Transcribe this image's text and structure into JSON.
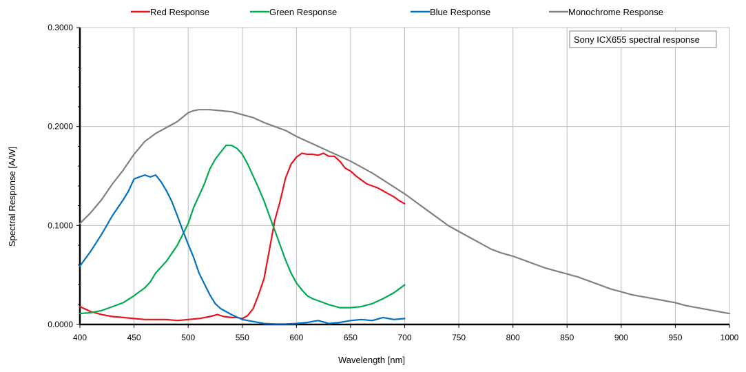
{
  "chart_data": {
    "type": "line",
    "title": "",
    "annotation": "Sony ICX655 spectral response",
    "xlabel": "Wavelength [nm]",
    "ylabel": "Spectral Response [A/W]",
    "xlim": [
      400,
      1000
    ],
    "ylim": [
      0,
      0.3
    ],
    "x_ticks": [
      400,
      450,
      500,
      550,
      600,
      650,
      700,
      750,
      800,
      850,
      900,
      950,
      1000
    ],
    "y_ticks": [
      0.0,
      0.1,
      0.2,
      0.3
    ],
    "x_tick_labels": [
      "400",
      "450",
      "500",
      "550",
      "600",
      "650",
      "700",
      "750",
      "800",
      "850",
      "900",
      "950",
      "1000"
    ],
    "y_tick_labels": [
      "0.0000",
      "0.1000",
      "0.2000",
      "0.3000"
    ],
    "grid": true,
    "legend_position": "top",
    "series": [
      {
        "name": "Red Response",
        "color": "#e8141c",
        "points": [
          [
            400,
            0.018
          ],
          [
            410,
            0.013
          ],
          [
            420,
            0.01
          ],
          [
            430,
            0.008
          ],
          [
            440,
            0.007
          ],
          [
            450,
            0.006
          ],
          [
            460,
            0.005
          ],
          [
            470,
            0.005
          ],
          [
            480,
            0.005
          ],
          [
            490,
            0.004
          ],
          [
            500,
            0.005
          ],
          [
            510,
            0.006
          ],
          [
            520,
            0.008
          ],
          [
            527,
            0.01
          ],
          [
            533,
            0.008
          ],
          [
            540,
            0.007
          ],
          [
            545,
            0.007
          ],
          [
            550,
            0.006
          ],
          [
            555,
            0.009
          ],
          [
            560,
            0.016
          ],
          [
            565,
            0.03
          ],
          [
            570,
            0.046
          ],
          [
            575,
            0.075
          ],
          [
            580,
            0.105
          ],
          [
            585,
            0.125
          ],
          [
            590,
            0.148
          ],
          [
            595,
            0.162
          ],
          [
            600,
            0.169
          ],
          [
            605,
            0.173
          ],
          [
            610,
            0.172
          ],
          [
            615,
            0.172
          ],
          [
            620,
            0.171
          ],
          [
            625,
            0.173
          ],
          [
            630,
            0.17
          ],
          [
            635,
            0.17
          ],
          [
            640,
            0.165
          ],
          [
            645,
            0.158
          ],
          [
            650,
            0.155
          ],
          [
            655,
            0.15
          ],
          [
            660,
            0.146
          ],
          [
            665,
            0.142
          ],
          [
            670,
            0.14
          ],
          [
            675,
            0.138
          ],
          [
            680,
            0.135
          ],
          [
            685,
            0.132
          ],
          [
            690,
            0.129
          ],
          [
            695,
            0.125
          ],
          [
            700,
            0.122
          ]
        ]
      },
      {
        "name": "Green Response",
        "color": "#00aa4f",
        "points": [
          [
            400,
            0.011
          ],
          [
            410,
            0.012
          ],
          [
            420,
            0.014
          ],
          [
            430,
            0.018
          ],
          [
            440,
            0.022
          ],
          [
            450,
            0.029
          ],
          [
            460,
            0.037
          ],
          [
            465,
            0.043
          ],
          [
            470,
            0.052
          ],
          [
            480,
            0.064
          ],
          [
            490,
            0.08
          ],
          [
            500,
            0.102
          ],
          [
            505,
            0.118
          ],
          [
            510,
            0.13
          ],
          [
            515,
            0.142
          ],
          [
            520,
            0.157
          ],
          [
            525,
            0.167
          ],
          [
            530,
            0.174
          ],
          [
            535,
            0.181
          ],
          [
            540,
            0.181
          ],
          [
            545,
            0.178
          ],
          [
            550,
            0.172
          ],
          [
            555,
            0.162
          ],
          [
            560,
            0.15
          ],
          [
            565,
            0.138
          ],
          [
            570,
            0.125
          ],
          [
            575,
            0.11
          ],
          [
            580,
            0.095
          ],
          [
            585,
            0.08
          ],
          [
            590,
            0.065
          ],
          [
            595,
            0.052
          ],
          [
            600,
            0.042
          ],
          [
            605,
            0.035
          ],
          [
            610,
            0.029
          ],
          [
            615,
            0.026
          ],
          [
            620,
            0.024
          ],
          [
            625,
            0.022
          ],
          [
            630,
            0.02
          ],
          [
            640,
            0.017
          ],
          [
            650,
            0.017
          ],
          [
            660,
            0.018
          ],
          [
            670,
            0.021
          ],
          [
            680,
            0.026
          ],
          [
            690,
            0.032
          ],
          [
            695,
            0.036
          ],
          [
            700,
            0.04
          ]
        ]
      },
      {
        "name": "Blue Response",
        "color": "#0070c0",
        "points": [
          [
            400,
            0.059
          ],
          [
            410,
            0.074
          ],
          [
            420,
            0.091
          ],
          [
            430,
            0.11
          ],
          [
            440,
            0.126
          ],
          [
            445,
            0.135
          ],
          [
            450,
            0.147
          ],
          [
            455,
            0.149
          ],
          [
            460,
            0.151
          ],
          [
            465,
            0.149
          ],
          [
            470,
            0.151
          ],
          [
            475,
            0.144
          ],
          [
            480,
            0.135
          ],
          [
            485,
            0.124
          ],
          [
            490,
            0.11
          ],
          [
            495,
            0.095
          ],
          [
            500,
            0.081
          ],
          [
            505,
            0.068
          ],
          [
            510,
            0.052
          ],
          [
            515,
            0.041
          ],
          [
            520,
            0.03
          ],
          [
            525,
            0.021
          ],
          [
            530,
            0.016
          ],
          [
            540,
            0.01
          ],
          [
            550,
            0.005
          ],
          [
            560,
            0.003
          ],
          [
            570,
            0.001
          ],
          [
            580,
            0.0005
          ],
          [
            590,
            0.0005
          ],
          [
            600,
            0.001
          ],
          [
            610,
            0.002
          ],
          [
            620,
            0.004
          ],
          [
            630,
            0.001
          ],
          [
            640,
            0.002
          ],
          [
            650,
            0.004
          ],
          [
            660,
            0.005
          ],
          [
            670,
            0.004
          ],
          [
            680,
            0.007
          ],
          [
            690,
            0.005
          ],
          [
            700,
            0.006
          ]
        ]
      },
      {
        "name": "Monochrome Response",
        "color": "#808080",
        "points": [
          [
            400,
            0.102
          ],
          [
            410,
            0.113
          ],
          [
            420,
            0.126
          ],
          [
            430,
            0.142
          ],
          [
            440,
            0.156
          ],
          [
            450,
            0.172
          ],
          [
            460,
            0.185
          ],
          [
            470,
            0.193
          ],
          [
            480,
            0.199
          ],
          [
            490,
            0.205
          ],
          [
            500,
            0.214
          ],
          [
            505,
            0.216
          ],
          [
            510,
            0.217
          ],
          [
            520,
            0.217
          ],
          [
            530,
            0.216
          ],
          [
            540,
            0.215
          ],
          [
            550,
            0.212
          ],
          [
            560,
            0.209
          ],
          [
            570,
            0.204
          ],
          [
            580,
            0.2
          ],
          [
            590,
            0.196
          ],
          [
            600,
            0.19
          ],
          [
            610,
            0.185
          ],
          [
            620,
            0.18
          ],
          [
            630,
            0.175
          ],
          [
            640,
            0.17
          ],
          [
            650,
            0.165
          ],
          [
            660,
            0.159
          ],
          [
            670,
            0.153
          ],
          [
            680,
            0.146
          ],
          [
            690,
            0.139
          ],
          [
            700,
            0.132
          ],
          [
            710,
            0.124
          ],
          [
            720,
            0.116
          ],
          [
            730,
            0.108
          ],
          [
            740,
            0.1
          ],
          [
            750,
            0.094
          ],
          [
            760,
            0.088
          ],
          [
            770,
            0.082
          ],
          [
            780,
            0.076
          ],
          [
            790,
            0.072
          ],
          [
            800,
            0.069
          ],
          [
            810,
            0.065
          ],
          [
            820,
            0.061
          ],
          [
            830,
            0.057
          ],
          [
            840,
            0.054
          ],
          [
            850,
            0.051
          ],
          [
            860,
            0.048
          ],
          [
            870,
            0.044
          ],
          [
            880,
            0.04
          ],
          [
            890,
            0.036
          ],
          [
            900,
            0.033
          ],
          [
            910,
            0.03
          ],
          [
            920,
            0.028
          ],
          [
            930,
            0.026
          ],
          [
            940,
            0.024
          ],
          [
            950,
            0.022
          ],
          [
            960,
            0.019
          ],
          [
            970,
            0.017
          ],
          [
            980,
            0.015
          ],
          [
            990,
            0.013
          ],
          [
            1000,
            0.011
          ]
        ]
      }
    ]
  }
}
